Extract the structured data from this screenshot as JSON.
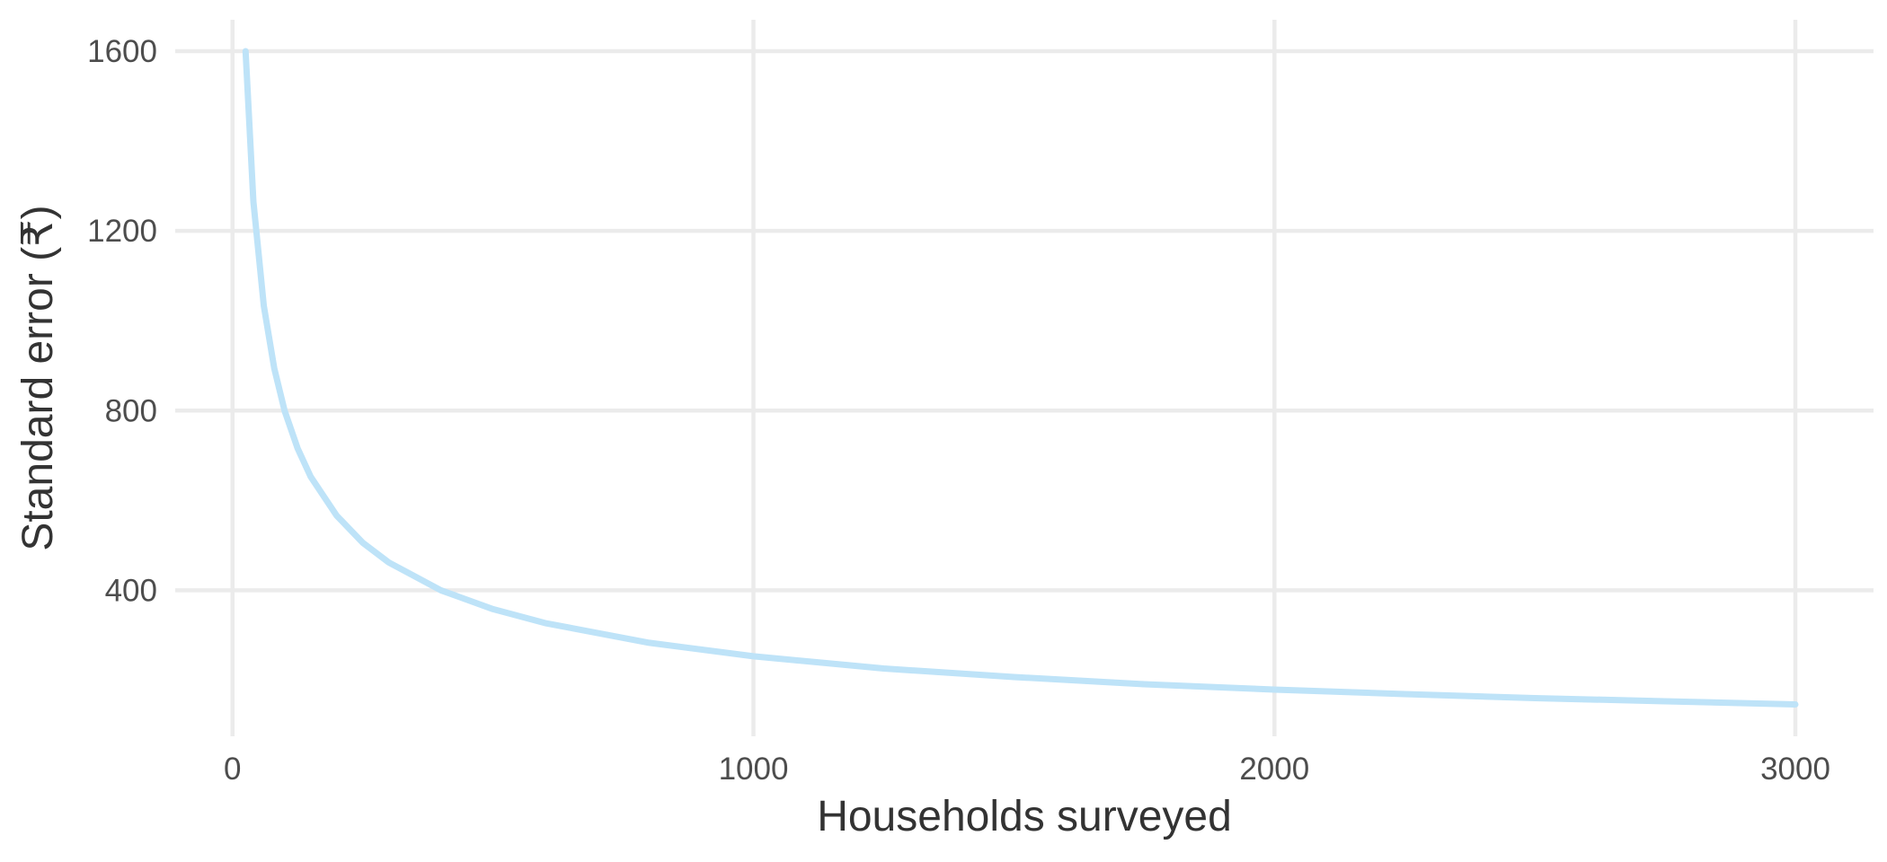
{
  "chart_data": {
    "type": "line",
    "title": "",
    "xlabel": "Households surveyed",
    "ylabel": "Standard error (₹)",
    "xlim": [
      -110,
      3150
    ],
    "ylim": [
      75,
      1670
    ],
    "x_ticks": [
      0,
      1000,
      2000,
      3000
    ],
    "y_ticks": [
      400,
      800,
      1200,
      1600
    ],
    "grid": true,
    "legend": "none",
    "colors": {
      "series": "#bee3f8",
      "grid": "#ebebeb",
      "tick_text": "#4d4d4d",
      "axis_title": "#333333"
    },
    "series": [
      {
        "x": [
          25,
          40,
          60,
          80,
          100,
          125,
          150,
          200,
          250,
          300,
          400,
          500,
          600,
          800,
          1000,
          1250,
          1500,
          1750,
          2000,
          2250,
          2500,
          2750,
          3000
        ],
        "y": [
          1600,
          1265,
          1033,
          894,
          800,
          716,
          653,
          566,
          506,
          462,
          400,
          358,
          327,
          283,
          253,
          226,
          207,
          191,
          179,
          169,
          160,
          153,
          146
        ]
      }
    ]
  }
}
